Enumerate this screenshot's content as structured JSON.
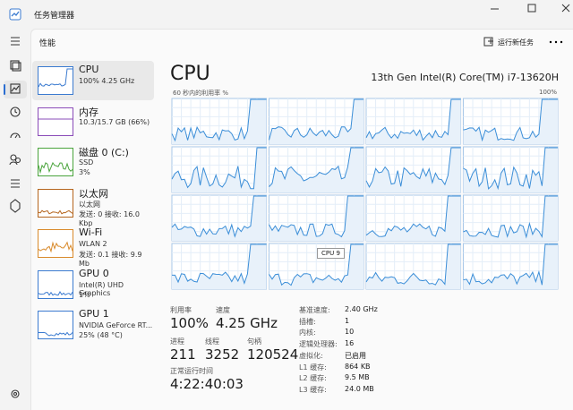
{
  "window": {
    "title": "任务管理器"
  },
  "header": {
    "title": "性能",
    "run_new_task": "运行新任务"
  },
  "sidebar": [
    {
      "name": "CPU",
      "detail": [
        "100%  4.25 GHz"
      ]
    },
    {
      "name": "内存",
      "detail": [
        "10.3/15.7 GB (66%)"
      ]
    },
    {
      "name": "磁盘 0 (C:)",
      "detail": [
        "SSD",
        "3%"
      ]
    },
    {
      "name": "以太网",
      "detail": [
        "以太网",
        "发送: 0 接收: 16.0 Kbp"
      ]
    },
    {
      "name": "Wi-Fi",
      "detail": [
        "WLAN 2",
        "发送: 0.1 接收: 9.9 Mb"
      ]
    },
    {
      "name": "GPU 0",
      "detail": [
        "Intel(R) UHD Graphics",
        "1%"
      ]
    },
    {
      "name": "GPU 1",
      "detail": [
        "NVIDIA GeForce RT...",
        "25% (48 °C)"
      ]
    }
  ],
  "main": {
    "title": "CPU",
    "model": "13th Gen Intel(R) Core(TM) i7-13620H",
    "graph_label": "60 秒内的利用率 %",
    "graph_max": "100%",
    "tooltip": "CPU 9",
    "stats": [
      {
        "label": "利用率",
        "value": "100%"
      },
      {
        "label": "速度",
        "value": "4.25 GHz"
      },
      {
        "label": "进程",
        "value": "211"
      },
      {
        "label": "线程",
        "value": "3252"
      },
      {
        "label": "句柄",
        "value": "120524"
      },
      {
        "label": "正常运行时间",
        "value": "4:22:40:03"
      }
    ],
    "specs": [
      {
        "label": "基准速度:",
        "value": "2.40 GHz"
      },
      {
        "label": "插槽:",
        "value": "1"
      },
      {
        "label": "内核:",
        "value": "10"
      },
      {
        "label": "逻辑处理器:",
        "value": "16"
      },
      {
        "label": "虚拟化:",
        "value": "已启用"
      },
      {
        "label": "L1 缓存:",
        "value": "864 KB"
      },
      {
        "label": "L2 缓存:",
        "value": "9.5 MB"
      },
      {
        "label": "L3 缓存:",
        "value": "24.0 MB"
      }
    ]
  }
}
